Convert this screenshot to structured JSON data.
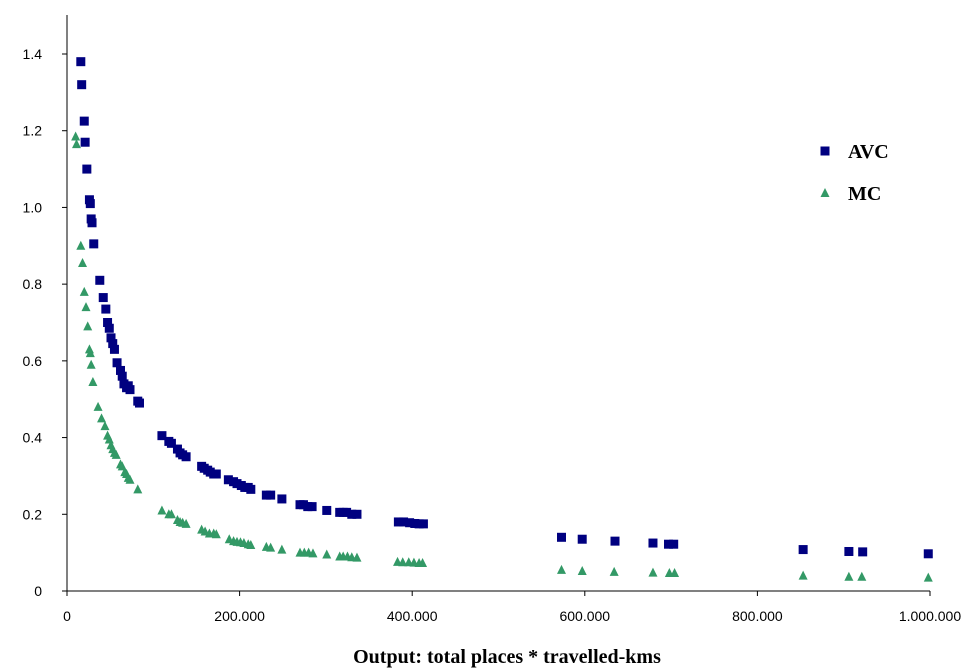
{
  "chart_data": {
    "type": "scatter",
    "title": "",
    "xlabel": "Output: total places * travelled-kms",
    "ylabel": "",
    "xlim": [
      0,
      1000000
    ],
    "ylim": [
      0,
      1.5
    ],
    "x_ticks": [
      0,
      200000,
      400000,
      600000,
      800000,
      1000000
    ],
    "x_tick_labels": [
      "0",
      "200.000",
      "400.000",
      "600.000",
      "800.000",
      "1.000.000"
    ],
    "y_ticks": [
      0,
      0.2,
      0.4,
      0.6,
      0.8,
      1.0,
      1.2,
      1.4
    ],
    "y_tick_labels": [
      "0",
      "0.2",
      "0.4",
      "0.6",
      "0.8",
      "1.0",
      "1.2",
      "1.4"
    ],
    "grid": false,
    "legend_position": "upper-right",
    "series": [
      {
        "name": "AVC",
        "marker": "square",
        "color": "#000080",
        "x": [
          16000,
          17000,
          20000,
          21000,
          23000,
          26000,
          27000,
          28000,
          29000,
          31000,
          38000,
          42000,
          45000,
          47000,
          49000,
          51000,
          53000,
          55000,
          58000,
          62000,
          64000,
          66000,
          69000,
          71000,
          73000,
          82000,
          84000,
          110000,
          118000,
          121000,
          128000,
          131000,
          134000,
          138000,
          156000,
          159000,
          163000,
          166000,
          170000,
          173000,
          187000,
          193000,
          197000,
          202000,
          206000,
          210000,
          213000,
          231000,
          236000,
          249000,
          270000,
          274000,
          279000,
          284000,
          301000,
          316000,
          320000,
          324000,
          330000,
          336000,
          384000,
          390000,
          397000,
          403000,
          408000,
          413000,
          573000,
          597000,
          635000,
          679000,
          697000,
          703000,
          853000,
          906000,
          922000,
          998000
        ],
        "y": [
          1.38,
          1.32,
          1.225,
          1.17,
          1.1,
          1.02,
          1.01,
          0.97,
          0.96,
          0.905,
          0.81,
          0.765,
          0.735,
          0.7,
          0.685,
          0.66,
          0.645,
          0.63,
          0.595,
          0.575,
          0.56,
          0.54,
          0.53,
          0.535,
          0.525,
          0.495,
          0.49,
          0.405,
          0.39,
          0.385,
          0.37,
          0.36,
          0.355,
          0.35,
          0.325,
          0.32,
          0.315,
          0.31,
          0.305,
          0.305,
          0.29,
          0.285,
          0.28,
          0.275,
          0.27,
          0.27,
          0.265,
          0.25,
          0.25,
          0.24,
          0.225,
          0.225,
          0.22,
          0.22,
          0.21,
          0.205,
          0.205,
          0.205,
          0.2,
          0.2,
          0.18,
          0.18,
          0.178,
          0.176,
          0.175,
          0.175,
          0.14,
          0.135,
          0.13,
          0.125,
          0.122,
          0.122,
          0.108,
          0.103,
          0.102,
          0.097
        ]
      },
      {
        "name": "MC",
        "marker": "triangle",
        "color": "#339966",
        "x": [
          10000,
          11000,
          16000,
          18000,
          20000,
          22000,
          24000,
          26000,
          27000,
          28000,
          30000,
          36000,
          40000,
          44000,
          47000,
          49000,
          51000,
          53000,
          55000,
          57000,
          62000,
          64000,
          67000,
          69000,
          71000,
          73000,
          82000,
          110000,
          118000,
          121000,
          128000,
          131000,
          134000,
          138000,
          156000,
          160000,
          165000,
          170000,
          173000,
          188000,
          193000,
          197000,
          201000,
          205000,
          210000,
          213000,
          231000,
          236000,
          249000,
          270000,
          275000,
          280000,
          285000,
          301000,
          316000,
          320000,
          325000,
          330000,
          336000,
          383000,
          389000,
          396000,
          402000,
          408000,
          412000,
          573000,
          597000,
          634000,
          679000,
          698000,
          704000,
          853000,
          906000,
          921000,
          998000
        ],
        "y": [
          1.185,
          1.165,
          0.9,
          0.855,
          0.78,
          0.74,
          0.69,
          0.63,
          0.62,
          0.59,
          0.545,
          0.48,
          0.45,
          0.43,
          0.405,
          0.395,
          0.38,
          0.37,
          0.36,
          0.355,
          0.33,
          0.325,
          0.31,
          0.305,
          0.295,
          0.29,
          0.265,
          0.21,
          0.2,
          0.2,
          0.185,
          0.18,
          0.178,
          0.175,
          0.16,
          0.155,
          0.15,
          0.15,
          0.148,
          0.135,
          0.13,
          0.128,
          0.127,
          0.125,
          0.122,
          0.12,
          0.115,
          0.113,
          0.108,
          0.1,
          0.1,
          0.1,
          0.098,
          0.095,
          0.09,
          0.09,
          0.09,
          0.088,
          0.087,
          0.076,
          0.075,
          0.075,
          0.074,
          0.073,
          0.073,
          0.055,
          0.052,
          0.05,
          0.048,
          0.047,
          0.047,
          0.04,
          0.037,
          0.037,
          0.035
        ]
      }
    ]
  }
}
